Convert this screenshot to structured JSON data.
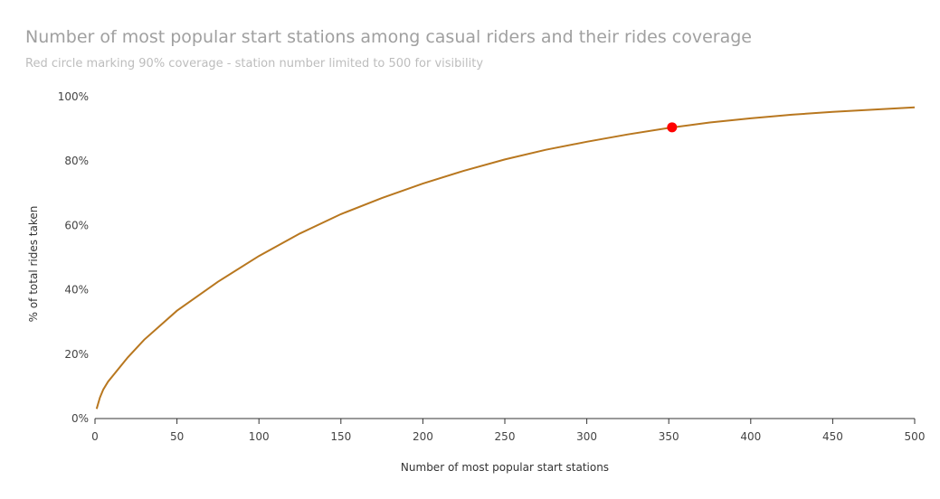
{
  "chart_data": {
    "type": "line",
    "title": "Number of most popular start stations among casual riders and their rides coverage",
    "subtitle": "Red circle marking 90% coverage - station number limited to 500 for visibility",
    "xlabel": "Number of most popular start stations",
    "ylabel": "% of total rides taken",
    "xlim": [
      0,
      500
    ],
    "ylim": [
      0,
      100
    ],
    "x_ticks": [
      0,
      50,
      100,
      150,
      200,
      250,
      300,
      350,
      400,
      450,
      500
    ],
    "y_ticks": [
      0,
      20,
      40,
      60,
      80,
      100
    ],
    "y_tick_labels": [
      "0%",
      "20%",
      "40%",
      "60%",
      "80%",
      "100%"
    ],
    "grid": false,
    "line_color": "#B8771F",
    "marker_color": "#FF0000",
    "series": [
      {
        "x": [
          1,
          3,
          5,
          8,
          12,
          20,
          30,
          40,
          50,
          75,
          100,
          125,
          150,
          175,
          200,
          225,
          250,
          275,
          300,
          325,
          350,
          375,
          400,
          425,
          450,
          475,
          500
        ],
        "y": [
          3,
          6.5,
          9,
          11.5,
          14,
          19,
          24.5,
          29,
          33.5,
          42.5,
          50.5,
          57.5,
          63.5,
          68.5,
          73,
          77,
          80.5,
          83.5,
          86,
          88.3,
          90.3,
          92,
          93.3,
          94.4,
          95.3,
          96,
          96.7
        ]
      }
    ],
    "highlight_point": {
      "x": 352,
      "y": 90.5,
      "label": "90% coverage"
    }
  }
}
